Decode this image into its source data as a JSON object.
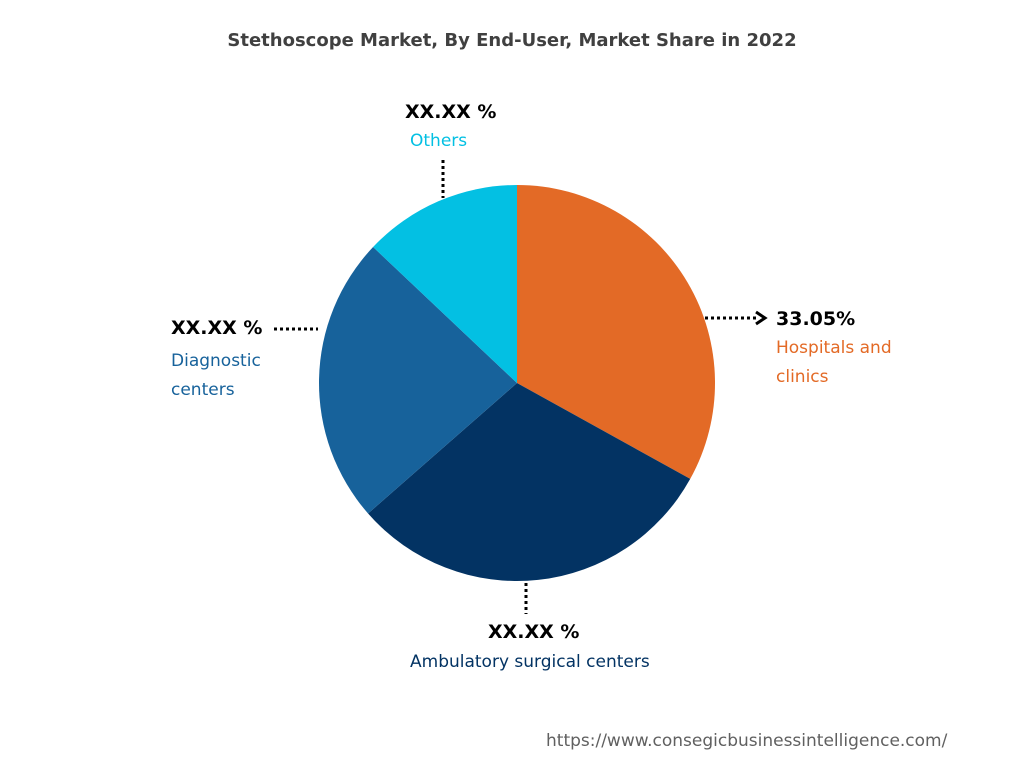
{
  "chart_data": {
    "type": "pie",
    "title": "Stethoscope Market, By End-User, Market Share in 2022",
    "slices": [
      {
        "name": "Hospitals and clinics",
        "value": 33.05,
        "label": "33.05%",
        "color": "#e36a26"
      },
      {
        "name": "Ambulatory surgical centers",
        "value": 30.5,
        "label": "XX.XX %",
        "color": "#033363"
      },
      {
        "name": "Diagnostic centers",
        "value": 23.5,
        "label": "XX.XX %",
        "color": "#17629b"
      },
      {
        "name": "Others",
        "value": 12.95,
        "label": "XX.XX %",
        "color": "#03c0e3"
      }
    ],
    "start_angle_deg": 0,
    "direction": "clockwise",
    "legend": "none"
  },
  "footer": {
    "source": "https://www.consegicbusinessintelligence.com/"
  }
}
